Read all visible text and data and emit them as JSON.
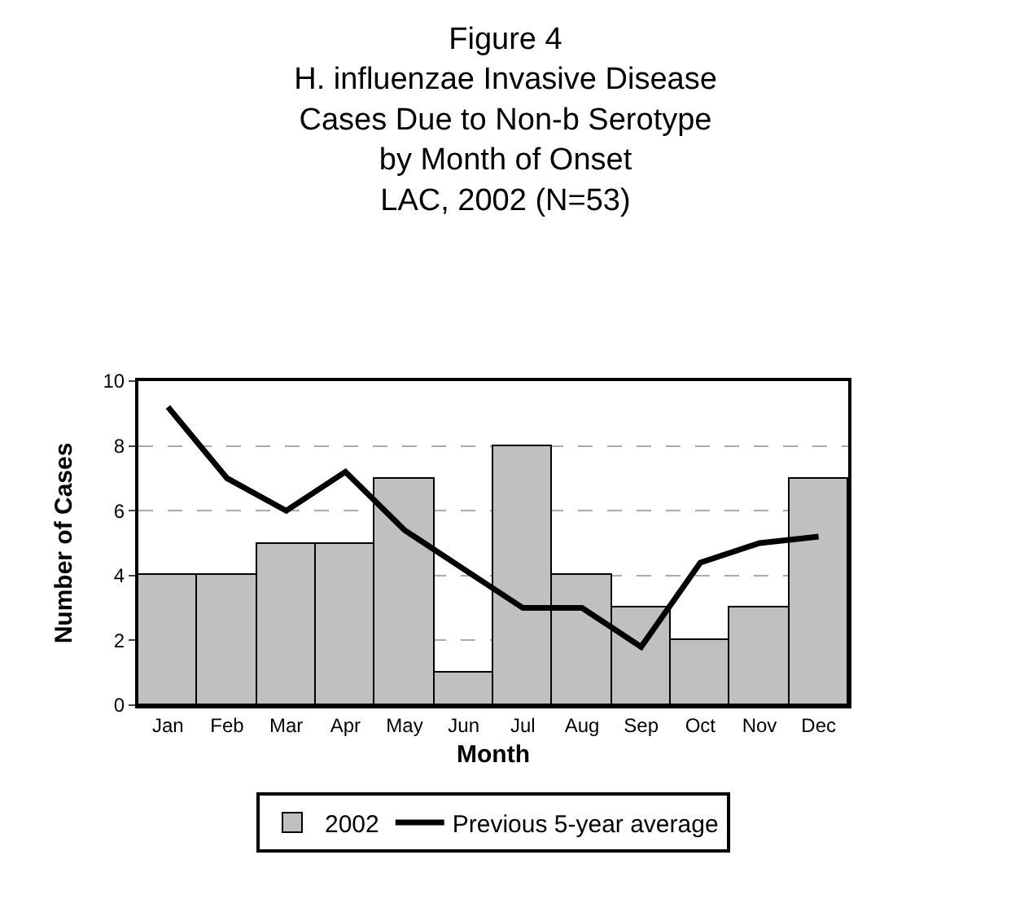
{
  "chart_data": {
    "type": "bar",
    "title": "Figure 4\nH. influenzae Invasive Disease\nCases Due to Non-b Serotype\nby Month of Onset\nLAC, 2002 (N=53)",
    "xlabel": "Month",
    "ylabel": "Number of Cases",
    "categories": [
      "Jan",
      "Feb",
      "Mar",
      "Apr",
      "May",
      "Jun",
      "Jul",
      "Aug",
      "Sep",
      "Oct",
      "Nov",
      "Dec"
    ],
    "series": [
      {
        "name": "2002",
        "color": "#c0c0c0",
        "values": [
          4,
          4,
          5,
          5,
          7,
          1,
          8,
          4,
          3,
          2,
          3,
          7
        ]
      },
      {
        "name": "Previous 5-year average",
        "type": "line",
        "color": "#000000",
        "values": [
          9.2,
          7,
          6,
          7.2,
          5.4,
          4.2,
          3,
          3,
          1.8,
          4.4,
          5,
          5.2
        ]
      }
    ],
    "ylim": [
      0,
      10
    ],
    "yticks": [
      0,
      2,
      4,
      6,
      8,
      10
    ],
    "grid": "y",
    "legend": "bottom",
    "marker": "none",
    "line_style": "solid"
  }
}
